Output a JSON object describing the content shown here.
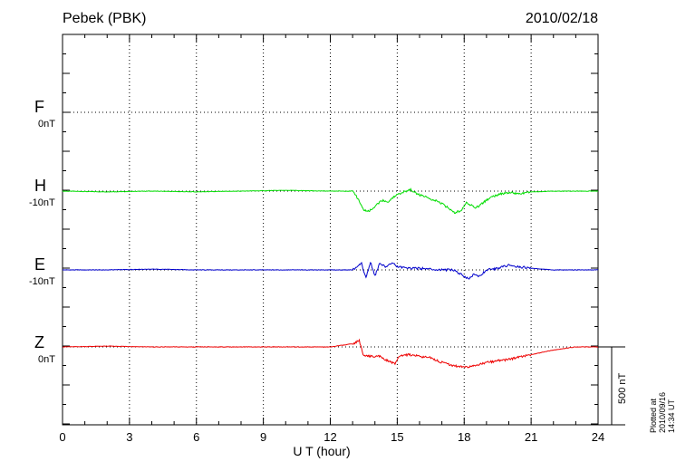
{
  "header": {
    "station": "Pebek (PBK)",
    "date": "2010/02/18"
  },
  "footer": {
    "plotted": "Plotted at 2010/09/16 14:34 UT"
  },
  "scale_bar": {
    "label": "500 nT"
  },
  "chart_data": {
    "type": "line",
    "title": "Pebek (PBK)",
    "xlabel": "U T (hour)",
    "xlim": [
      0,
      24
    ],
    "xticks": [
      0,
      3,
      6,
      9,
      12,
      15,
      18,
      21,
      24
    ],
    "grid": true,
    "components": [
      {
        "name": "F",
        "baseline_label": "0nT",
        "color": "#f0a000"
      },
      {
        "name": "H",
        "baseline_label": "-10nT",
        "color": "#00dd00"
      },
      {
        "name": "E",
        "baseline_label": "-10nT",
        "color": "#0000cc"
      },
      {
        "name": "Z",
        "baseline_label": "0nT",
        "color": "#ee0000"
      }
    ],
    "series": [
      {
        "name": "H",
        "x": [
          0,
          2,
          4,
          6,
          8,
          10,
          12,
          13,
          13.2,
          13.5,
          13.7,
          14.0,
          14.3,
          14.6,
          14.9,
          15.2,
          15.6,
          15.9,
          16.3,
          16.7,
          17.0,
          17.3,
          17.6,
          17.9,
          18.1,
          18.3,
          18.5,
          18.8,
          19.2,
          19.6,
          20.0,
          20.5,
          21.0,
          22.0,
          23.0,
          24.0
        ],
        "values": [
          0,
          -5,
          0,
          -5,
          0,
          5,
          0,
          0,
          -40,
          -120,
          -130,
          -100,
          -60,
          -70,
          -30,
          -10,
          10,
          -20,
          -40,
          -60,
          -80,
          -110,
          -140,
          -120,
          -70,
          -90,
          -110,
          -80,
          -40,
          -20,
          -10,
          -15,
          -5,
          0,
          0,
          0
        ]
      },
      {
        "name": "E",
        "x": [
          0,
          2,
          4,
          6,
          8,
          10,
          12,
          13,
          13.4,
          13.6,
          13.8,
          14.0,
          14.2,
          14.5,
          14.8,
          15.0,
          15.5,
          16.0,
          17.0,
          17.5,
          18.0,
          18.2,
          18.4,
          18.7,
          19.0,
          19.5,
          20.0,
          20.5,
          21.0,
          22.0,
          23.0,
          24.0
        ],
        "values": [
          0,
          0,
          5,
          0,
          0,
          0,
          0,
          0,
          40,
          -50,
          50,
          -40,
          40,
          20,
          45,
          20,
          10,
          10,
          0,
          0,
          -40,
          -60,
          -30,
          -40,
          0,
          10,
          30,
          20,
          10,
          0,
          0,
          0
        ]
      },
      {
        "name": "Z",
        "x": [
          0,
          2,
          4,
          6,
          8,
          10,
          12,
          13.0,
          13.3,
          13.5,
          13.8,
          14.2,
          14.6,
          14.9,
          15.1,
          15.5,
          16.0,
          16.5,
          17.0,
          17.5,
          18.0,
          18.5,
          19.0,
          19.5,
          20.0,
          21.0,
          22.0,
          23.0,
          24.0
        ],
        "values": [
          0,
          5,
          0,
          0,
          0,
          0,
          0,
          20,
          40,
          -60,
          -60,
          -60,
          -90,
          -110,
          -60,
          -50,
          -60,
          -70,
          -100,
          -120,
          -130,
          -120,
          -100,
          -90,
          -80,
          -50,
          -20,
          0,
          0
        ]
      }
    ]
  }
}
